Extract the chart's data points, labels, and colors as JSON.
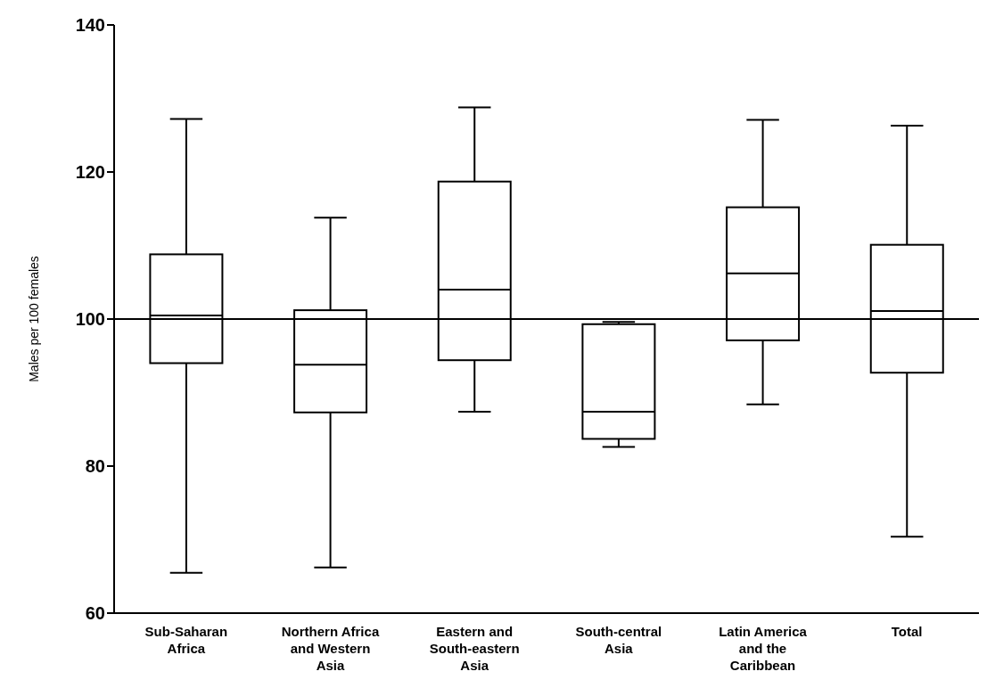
{
  "chart_data": {
    "type": "box",
    "ylabel": "Males per 100 females",
    "categories": [
      "Sub-Saharan Africa",
      "Northern Africa and Western Asia",
      "Eastern and South-eastern Asia",
      "South-central Asia",
      "Latin America and the Caribbean",
      "Total"
    ],
    "boxes": [
      {
        "low": 65.5,
        "q1": 94,
        "median": 100.5,
        "q3": 108.8,
        "high": 127.2
      },
      {
        "low": 66.2,
        "q1": 87.3,
        "median": 93.8,
        "q3": 101.2,
        "high": 113.8
      },
      {
        "low": 87.4,
        "q1": 94.4,
        "median": 104,
        "q3": 118.7,
        "high": 128.8
      },
      {
        "low": 82.6,
        "q1": 83.7,
        "median": 87.4,
        "q3": 99.3,
        "high": 99.6
      },
      {
        "low": 88.4,
        "q1": 97.1,
        "median": 106.2,
        "q3": 115.2,
        "high": 127.1
      },
      {
        "low": 70.4,
        "q1": 92.7,
        "median": 101.1,
        "q3": 110.1,
        "high": 126.3
      }
    ],
    "ylim": [
      60,
      140
    ],
    "yticks": [
      60,
      80,
      100,
      120,
      140
    ],
    "grid": false,
    "ref_lines": [
      {
        "axis": "y",
        "value": 100,
        "color": "#000000"
      }
    ]
  }
}
